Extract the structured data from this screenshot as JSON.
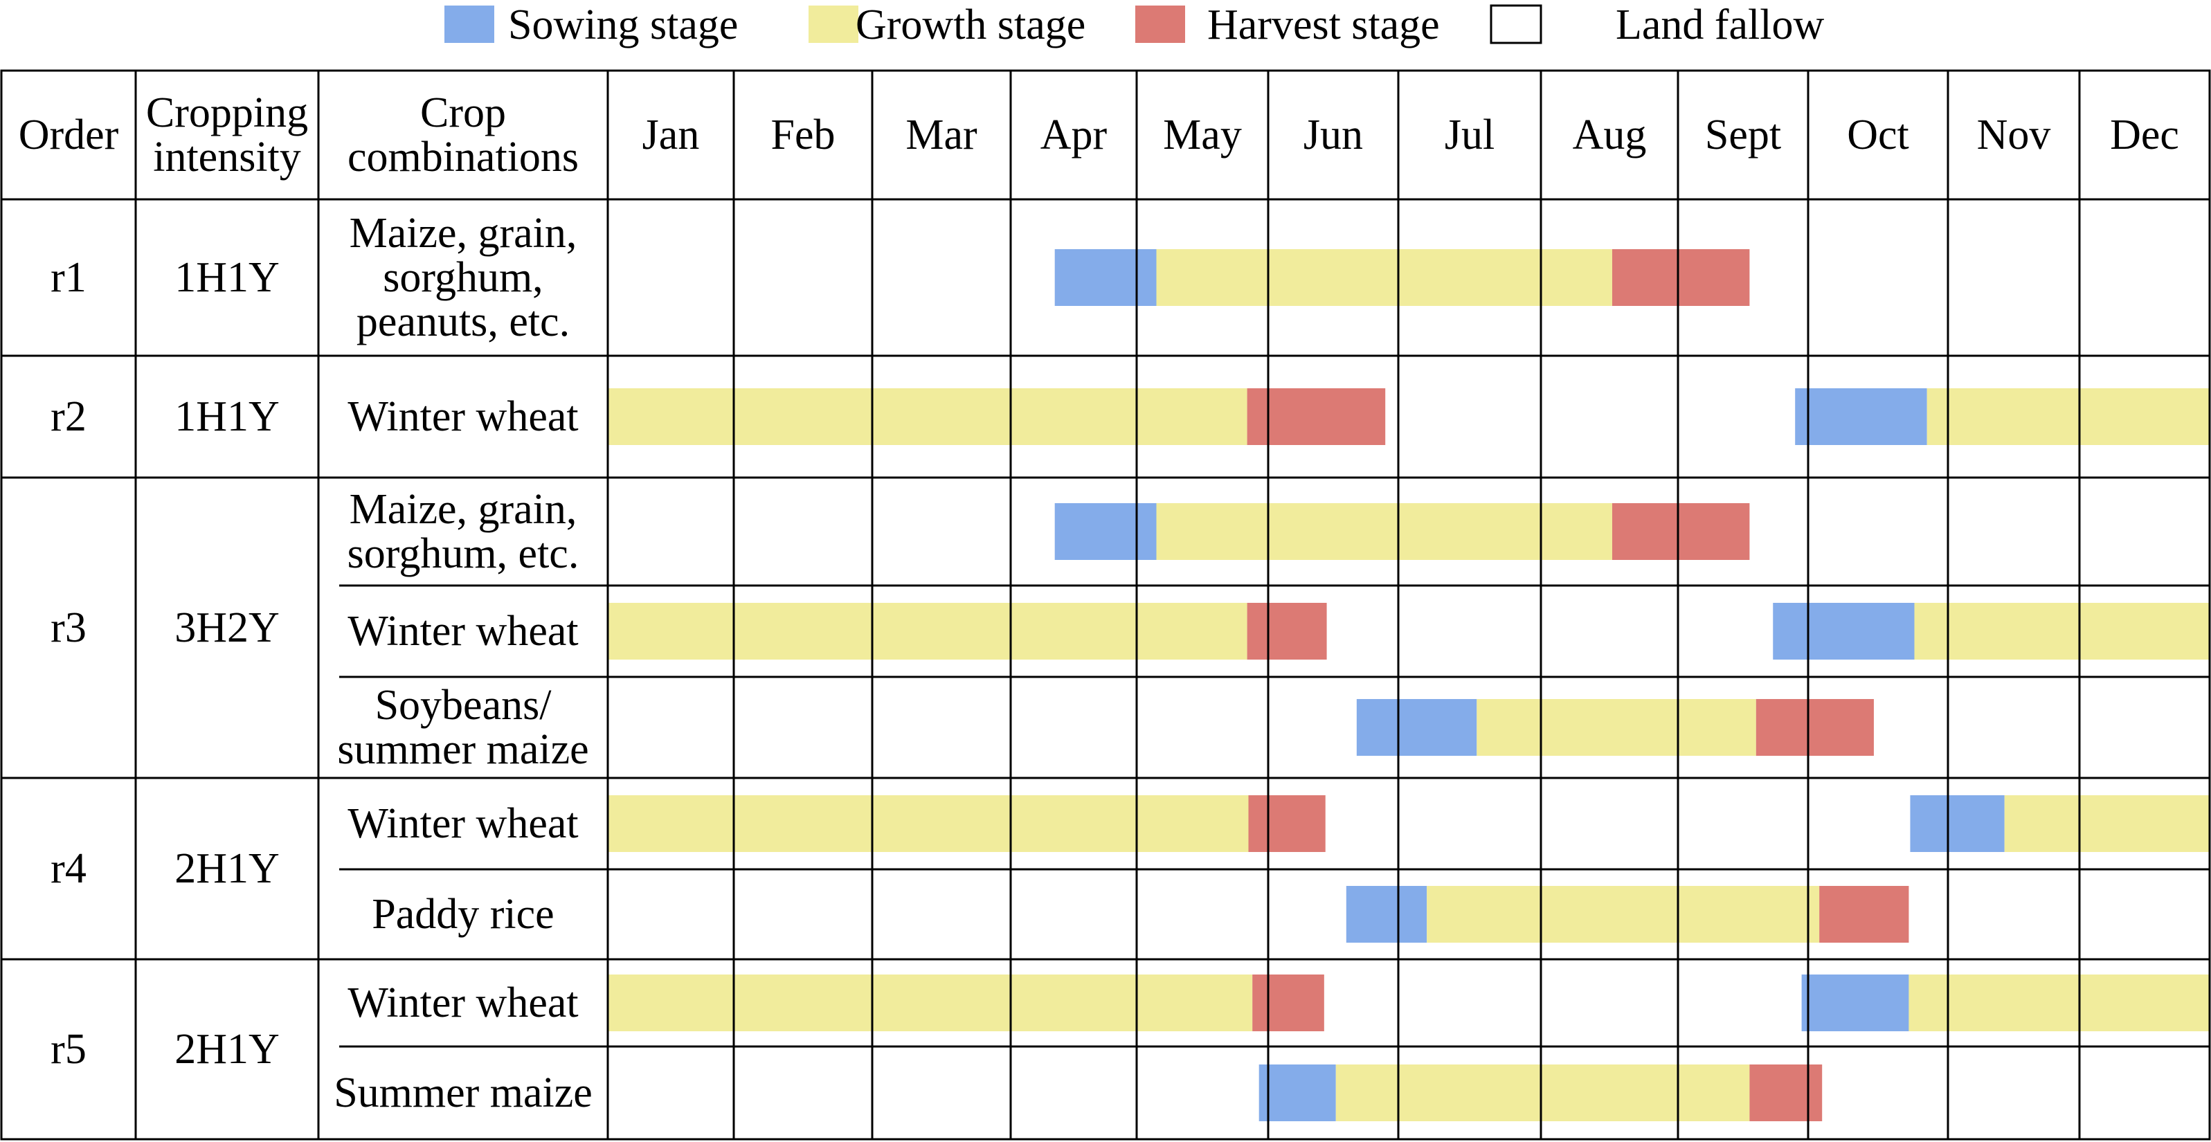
{
  "colors": {
    "sowing": "#84acea",
    "growth": "#f1ec9c",
    "harvest": "#dc7a74",
    "fallow": "#ffffff",
    "grid": "#000000"
  },
  "legend": [
    {
      "key": "sowing",
      "label": "Sowing stage"
    },
    {
      "key": "growth",
      "label": "Growth stage"
    },
    {
      "key": "harvest",
      "label": "Harvest stage"
    },
    {
      "key": "fallow",
      "label": "Land fallow"
    }
  ],
  "headers": {
    "order": "Order",
    "intensity": [
      "Cropping",
      "intensity"
    ],
    "crop": [
      "Crop",
      "combinations"
    ]
  },
  "months": [
    "Jan",
    "Feb",
    "Mar",
    "Apr",
    "May",
    "Jun",
    "Jul",
    "Aug",
    "Sept",
    "Oct",
    "Nov",
    "Dec"
  ],
  "groups": [
    {
      "order": "r1",
      "intensity": "1H1Y",
      "crops": [
        {
          "name": [
            "Maize, grain,",
            "sorghum,",
            "peanuts, etc."
          ],
          "stages": [
            {
              "type": "sowing",
              "start": 3.35,
              "end": 4.15
            },
            {
              "type": "growth",
              "start": 4.15,
              "end": 7.52
            },
            {
              "type": "harvest",
              "start": 7.52,
              "end": 8.55
            }
          ]
        }
      ]
    },
    {
      "order": "r2",
      "intensity": "1H1Y",
      "crops": [
        {
          "name": [
            "Winter wheat"
          ],
          "stages": [
            {
              "type": "growth",
              "start": 0,
              "end": 4.84
            },
            {
              "type": "harvest",
              "start": 4.84,
              "end": 5.9
            },
            {
              "type": "sowing",
              "start": 8.9,
              "end": 9.85
            },
            {
              "type": "growth",
              "start": 9.85,
              "end": 12
            }
          ]
        }
      ]
    },
    {
      "order": "r3",
      "intensity": "3H2Y",
      "crops": [
        {
          "name": [
            "Maize, grain,",
            "sorghum, etc."
          ],
          "stages": [
            {
              "type": "sowing",
              "start": 3.35,
              "end": 4.15
            },
            {
              "type": "growth",
              "start": 4.15,
              "end": 7.52
            },
            {
              "type": "harvest",
              "start": 7.52,
              "end": 8.55
            }
          ]
        },
        {
          "name": [
            "Winter wheat"
          ],
          "stages": [
            {
              "type": "growth",
              "start": 0,
              "end": 4.84
            },
            {
              "type": "harvest",
              "start": 4.84,
              "end": 5.45
            },
            {
              "type": "sowing",
              "start": 8.73,
              "end": 9.76
            },
            {
              "type": "growth",
              "start": 9.76,
              "end": 12
            }
          ]
        },
        {
          "name": [
            "Soybeans/",
            "summer maize"
          ],
          "stages": [
            {
              "type": "sowing",
              "start": 5.68,
              "end": 6.55
            },
            {
              "type": "growth",
              "start": 6.55,
              "end": 8.6
            },
            {
              "type": "harvest",
              "start": 8.6,
              "end": 9.47
            }
          ]
        }
      ]
    },
    {
      "order": "r4",
      "intensity": "2H1Y",
      "crops": [
        {
          "name": [
            "Winter wheat"
          ],
          "stages": [
            {
              "type": "growth",
              "start": 0,
              "end": 4.85
            },
            {
              "type": "harvest",
              "start": 4.85,
              "end": 5.44
            },
            {
              "type": "sowing",
              "start": 9.73,
              "end": 10.43
            },
            {
              "type": "growth",
              "start": 10.43,
              "end": 12
            }
          ]
        },
        {
          "name": [
            "Paddy rice"
          ],
          "stages": [
            {
              "type": "sowing",
              "start": 5.6,
              "end": 6.2
            },
            {
              "type": "growth",
              "start": 6.2,
              "end": 9.08
            },
            {
              "type": "harvest",
              "start": 9.08,
              "end": 9.72
            }
          ]
        }
      ]
    },
    {
      "order": "r5",
      "intensity": "2H1Y",
      "crops": [
        {
          "name": [
            "Winter wheat"
          ],
          "stages": [
            {
              "type": "growth",
              "start": 0,
              "end": 4.88
            },
            {
              "type": "harvest",
              "start": 4.88,
              "end": 5.43
            },
            {
              "type": "sowing",
              "start": 8.95,
              "end": 9.72
            },
            {
              "type": "growth",
              "start": 9.72,
              "end": 12
            }
          ]
        },
        {
          "name": [
            "Summer maize"
          ],
          "stages": [
            {
              "type": "sowing",
              "start": 4.93,
              "end": 5.52
            },
            {
              "type": "growth",
              "start": 5.52,
              "end": 8.55
            },
            {
              "type": "harvest",
              "start": 8.55,
              "end": 9.1
            }
          ]
        }
      ]
    }
  ]
}
